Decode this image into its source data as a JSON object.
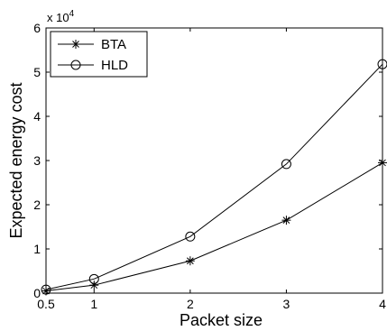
{
  "chart_data": {
    "type": "line",
    "xlabel": "Packet size",
    "ylabel": "Expected energy cost",
    "y_multiplier_base": "x 10",
    "y_multiplier_exp": "4",
    "xlim": [
      0.5,
      4
    ],
    "ylim": [
      0,
      6
    ],
    "xticks": [
      0.5,
      1,
      2,
      3,
      4
    ],
    "xtick_labels": [
      "0.5",
      "1",
      "2",
      "3",
      "4"
    ],
    "yticks": [
      0,
      1,
      2,
      3,
      4,
      5,
      6
    ],
    "ytick_labels": [
      "0",
      "1",
      "2",
      "3",
      "4",
      "5",
      "6"
    ],
    "grid": false,
    "legend_position": "top-left",
    "series": [
      {
        "name": "BTA",
        "marker": "star",
        "color": "#000000",
        "x": [
          0.5,
          1,
          2,
          3,
          4
        ],
        "y": [
          0.05,
          0.18,
          0.73,
          1.65,
          2.95
        ]
      },
      {
        "name": "HLD",
        "marker": "circle",
        "color": "#000000",
        "x": [
          0.5,
          1,
          2,
          3,
          4
        ],
        "y": [
          0.08,
          0.32,
          1.28,
          2.92,
          5.18
        ]
      }
    ]
  }
}
